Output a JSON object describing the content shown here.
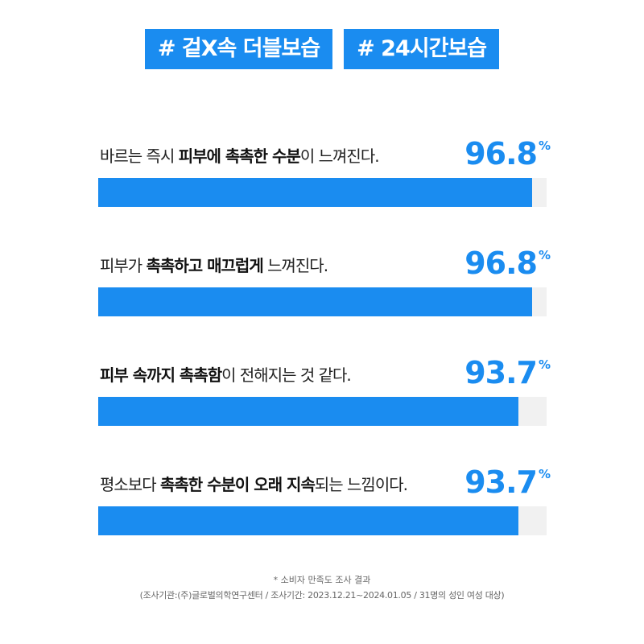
{
  "tags": [
    "# 겉X속 더블보습",
    "# 24시간보습"
  ],
  "chart_data": {
    "type": "bar",
    "orientation": "horizontal",
    "unit": "%",
    "ylim": [
      0,
      100
    ],
    "bar_color": "#1a8cf0",
    "track_color": "#f1f1f1",
    "categories": [
      "바르는 즉시 피부에 촉촉한 수분이 느껴진다.",
      "피부가 촉촉하고 매끄럽게 느껴진다.",
      "피부 속까지 촉촉함이 전해지는 것 같다.",
      "평소보다 촉촉한 수분이 오래 지속되는 느낌이다."
    ],
    "values": [
      96.8,
      96.8,
      93.7,
      93.7
    ],
    "labels": [
      "96.8",
      "96.8",
      "93.7",
      "93.7"
    ],
    "statements": [
      [
        {
          "t": "바르는 즉시 ",
          "b": false
        },
        {
          "t": "피부에 촉촉한 수분",
          "b": true
        },
        {
          "t": "이 느껴진다.",
          "b": false
        }
      ],
      [
        {
          "t": "피부가 ",
          "b": false
        },
        {
          "t": "촉촉하고 매끄럽게",
          "b": true
        },
        {
          "t": " 느껴진다.",
          "b": false
        }
      ],
      [
        {
          "t": "피부 속까지 촉촉함",
          "b": true
        },
        {
          "t": "이 전해지는 것 같다.",
          "b": false
        }
      ],
      [
        {
          "t": "평소보다 ",
          "b": false
        },
        {
          "t": "촉촉한 수분이 오래 지속",
          "b": true
        },
        {
          "t": "되는 느낌이다.",
          "b": false
        }
      ]
    ]
  },
  "footnote": {
    "line1": "* 소비자 만족도 조사 결과",
    "line2": "(조사기관:(주)글로벌의학연구센터 / 조사기간: 2023.12.21~2024.01.05 / 31명의 성인 여성 대상)"
  }
}
